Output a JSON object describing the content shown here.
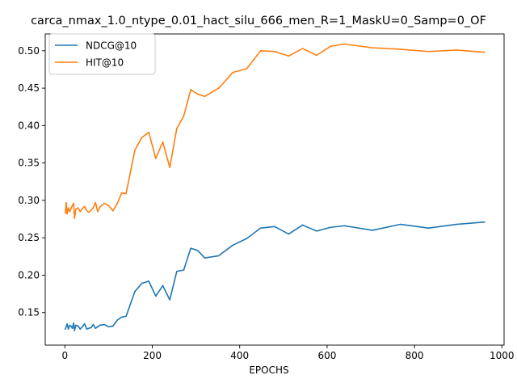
{
  "chart_data": {
    "type": "line",
    "title": "carca_nmax_1.0_ntype_0.01_hact_silu_666_men_R=1_MaskU=0_Samp=0_OF",
    "xlabel": "EPOCHS",
    "ylabel": "",
    "xlim": [
      -45,
      1005
    ],
    "ylim": [
      0.1065,
      0.5225
    ],
    "xticks": [
      0,
      200,
      400,
      600,
      800,
      1000
    ],
    "yticks": [
      0.15,
      0.2,
      0.25,
      0.3,
      0.35,
      0.4,
      0.45,
      0.5
    ],
    "ytick_labels": [
      "0.15",
      "0.20",
      "0.25",
      "0.30",
      "0.35",
      "0.40",
      "0.45",
      "0.50"
    ],
    "grid": false,
    "legend": "top-left",
    "series": [
      {
        "name": "NDCG@10",
        "color": "#1f77b4",
        "x": [
          1,
          3,
          5,
          8,
          11,
          14,
          17,
          20,
          22,
          25,
          30,
          35,
          40,
          45,
          50,
          55,
          60,
          65,
          70,
          75,
          80,
          90,
          100,
          110,
          120,
          130,
          140,
          160,
          176,
          192,
          208,
          224,
          240,
          256,
          272,
          288,
          304,
          320,
          352,
          384,
          416,
          448,
          480,
          512,
          544,
          576,
          608,
          640,
          704,
          768,
          832,
          896,
          960
        ],
        "y": [
          0.128,
          0.131,
          0.135,
          0.128,
          0.133,
          0.132,
          0.129,
          0.136,
          0.126,
          0.133,
          0.132,
          0.128,
          0.131,
          0.135,
          0.128,
          0.129,
          0.13,
          0.134,
          0.129,
          0.131,
          0.133,
          0.134,
          0.131,
          0.132,
          0.14,
          0.144,
          0.145,
          0.178,
          0.189,
          0.192,
          0.172,
          0.186,
          0.167,
          0.205,
          0.207,
          0.236,
          0.233,
          0.223,
          0.226,
          0.24,
          0.249,
          0.263,
          0.265,
          0.255,
          0.267,
          0.259,
          0.264,
          0.266,
          0.26,
          0.268,
          0.263,
          0.268,
          0.271
        ]
      },
      {
        "name": "HIT@10",
        "color": "#ff7f0e",
        "x": [
          1,
          3,
          5,
          8,
          11,
          14,
          17,
          20,
          22,
          25,
          30,
          35,
          40,
          45,
          50,
          55,
          60,
          65,
          70,
          75,
          80,
          90,
          100,
          110,
          120,
          130,
          140,
          160,
          176,
          192,
          208,
          224,
          240,
          256,
          272,
          288,
          304,
          320,
          352,
          384,
          416,
          448,
          480,
          512,
          544,
          576,
          608,
          640,
          704,
          768,
          832,
          896,
          960
        ],
        "y": [
          0.283,
          0.297,
          0.282,
          0.29,
          0.285,
          0.289,
          0.293,
          0.296,
          0.276,
          0.288,
          0.29,
          0.285,
          0.289,
          0.292,
          0.286,
          0.284,
          0.287,
          0.29,
          0.297,
          0.285,
          0.291,
          0.296,
          0.293,
          0.286,
          0.296,
          0.31,
          0.309,
          0.367,
          0.384,
          0.391,
          0.356,
          0.378,
          0.344,
          0.396,
          0.413,
          0.448,
          0.442,
          0.439,
          0.45,
          0.471,
          0.476,
          0.5,
          0.499,
          0.493,
          0.503,
          0.494,
          0.506,
          0.509,
          0.504,
          0.502,
          0.499,
          0.501,
          0.498
        ]
      }
    ]
  }
}
